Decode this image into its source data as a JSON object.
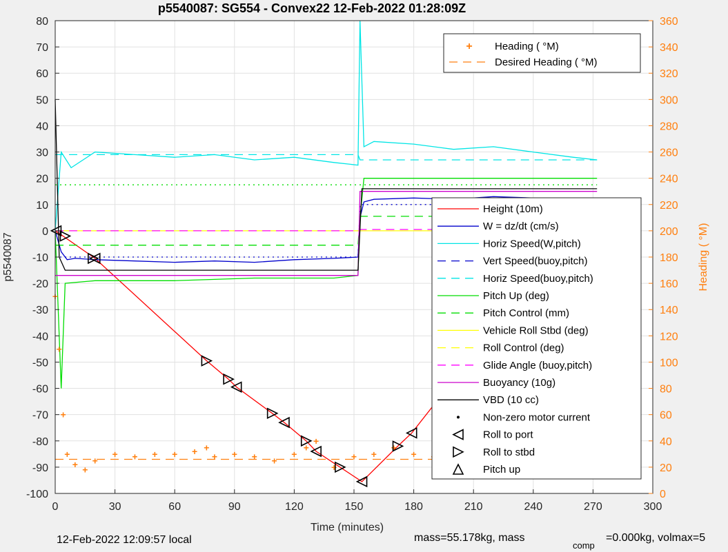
{
  "figure": {
    "title": "p5540087: SG554 - Convex22 12-Feb-2022 01:28:09Z",
    "footer_left": "12-Feb-2022 12:09:57 local",
    "footer_mid": "mass=55.178kg, mass",
    "footer_sub": "comp",
    "footer_right": "=0.000kg, volmax=5"
  },
  "chart_data": {
    "type": "line",
    "title": "p5540087: SG554 - Convex22 12-Feb-2022 01:28:09Z",
    "xlabel": "Time (minutes)",
    "ylabel": "p5540087",
    "y2label": "Heading ( °M)",
    "xlim": [
      0,
      300
    ],
    "ylim": [
      -100,
      80
    ],
    "y2lim": [
      0,
      360
    ],
    "xticks": [
      0,
      30,
      60,
      90,
      120,
      150,
      180,
      210,
      240,
      270,
      300
    ],
    "yticks": [
      -100,
      -90,
      -80,
      -70,
      -60,
      -50,
      -40,
      -30,
      -20,
      -10,
      0,
      10,
      20,
      30,
      40,
      50,
      60,
      70,
      80
    ],
    "y2ticks": [
      0,
      20,
      40,
      60,
      80,
      100,
      120,
      140,
      160,
      180,
      200,
      220,
      240,
      260,
      280,
      300,
      320,
      340,
      360
    ],
    "grid": true,
    "colors": {
      "height": "#ff0000",
      "w": "#0000cc",
      "horiz": "#00e5e5",
      "pitch": "#00dd00",
      "roll": "#ffff00",
      "glide": "#ff00ff",
      "buoyancy": "#cc00cc",
      "vbd": "#000000",
      "heading": "#ff7f0e"
    },
    "legend_heading": {
      "position": "top-right",
      "entries": [
        "Heading ( °M)",
        "Desired Heading ( °M)"
      ]
    },
    "legend_main": {
      "position": "right",
      "entries": [
        "Height (10m)",
        "W = dz/dt (cm/s)",
        "Horiz Speed(W,pitch)",
        "Vert Speed(buoy,pitch)",
        "Horiz Speed(buoy,pitch)",
        "Pitch Up (deg)",
        "Pitch Control (mm)",
        "Vehicle Roll Stbd (deg)",
        "Roll Control (deg)",
        "Glide Angle (buoy,pitch)",
        "Buoyancy (10g)",
        "VBD (10 cc)",
        "Non-zero motor current",
        "Roll to port",
        "Roll to stbd",
        "Pitch up"
      ]
    },
    "series": [
      {
        "name": "Height (10m)",
        "x": [
          0,
          2,
          20,
          76,
          87,
          91,
          109,
          115,
          126,
          131,
          143,
          154,
          172,
          179,
          193,
          200,
          213,
          219,
          230,
          241,
          248,
          262,
          272
        ],
        "values": [
          0,
          -1,
          -10.5,
          -49.5,
          -56.5,
          -59.5,
          -69.5,
          -73,
          -80,
          -84,
          -90,
          -95.5,
          -82,
          -77,
          -63.5,
          -59,
          -47.5,
          -42.5,
          -32.5,
          -23.5,
          -18,
          -8,
          0
        ]
      },
      {
        "name": "W = dz/dt (cm/s)",
        "x": [
          0,
          3,
          6,
          10,
          20,
          40,
          60,
          80,
          100,
          120,
          140,
          152,
          153,
          155,
          160,
          180,
          200,
          220,
          240,
          260,
          272
        ],
        "values": [
          0,
          -8,
          -11,
          -10.5,
          -11,
          -11.5,
          -12,
          -11.5,
          -12,
          -11,
          -10.5,
          -10,
          5,
          11,
          12,
          12.5,
          12,
          13,
          12.5,
          12,
          12
        ]
      },
      {
        "name": "Horiz Speed(W,pitch)",
        "x": [
          0,
          3,
          8,
          20,
          40,
          60,
          80,
          100,
          120,
          140,
          152,
          153,
          155,
          160,
          180,
          200,
          220,
          240,
          260,
          272
        ],
        "values": [
          0,
          30,
          24,
          30,
          29,
          28,
          29,
          27,
          28,
          26,
          25,
          80,
          32,
          34,
          33,
          31,
          32,
          30,
          28,
          27
        ]
      },
      {
        "name": "Vert Speed(buoy,pitch)",
        "x": [
          0,
          152,
          153,
          272
        ],
        "values": [
          -10,
          -10,
          10,
          10
        ]
      },
      {
        "name": "Horiz Speed(buoy,pitch)",
        "x": [
          0,
          152,
          153,
          272
        ],
        "values": [
          29,
          29,
          27,
          27
        ]
      },
      {
        "name": "Pitch Up (deg)",
        "x": [
          0,
          3,
          5,
          20,
          60,
          100,
          140,
          152,
          153,
          155,
          200,
          240,
          272
        ],
        "values": [
          0,
          -60,
          -20,
          -19,
          -19,
          -18,
          -18,
          -17,
          5,
          20,
          20,
          20,
          20
        ]
      },
      {
        "name": "Pitch Control (mm)",
        "x": [
          0,
          152,
          153,
          272
        ],
        "values": [
          -5.5,
          -5.5,
          5.5,
          5.5
        ]
      },
      {
        "name": "Vehicle Roll Stbd (deg)",
        "x": [
          0,
          20,
          60,
          76,
          100,
          109,
          115,
          140,
          152,
          172,
          179,
          200,
          220,
          260,
          272
        ],
        "values": [
          0,
          0,
          0,
          0,
          0,
          0,
          0,
          0,
          0,
          0,
          0,
          0,
          0,
          0,
          0
        ]
      },
      {
        "name": "Roll Control (deg)",
        "x": [
          0,
          152,
          153,
          272
        ],
        "values": [
          17.5,
          17.5,
          17.5,
          17.5
        ]
      },
      {
        "name": "Glide Angle (buoy,pitch)",
        "x": [
          0,
          152,
          153,
          272
        ],
        "values": [
          0,
          0,
          0.5,
          0.5
        ]
      },
      {
        "name": "Buoyancy (10g)",
        "x": [
          0,
          152,
          153,
          272
        ],
        "values": [
          -17,
          -17,
          15,
          15
        ]
      },
      {
        "name": "VBD (10 cc)",
        "x": [
          0,
          2,
          5,
          152,
          154,
          272
        ],
        "values": [
          50,
          -10,
          -15,
          -15,
          16,
          16
        ]
      },
      {
        "name": "Heading ( °M)",
        "axis": "right",
        "x": [
          0,
          2,
          4,
          6,
          10,
          15,
          20,
          30,
          40,
          50,
          60,
          70,
          76,
          80,
          90,
          100,
          110,
          120,
          126,
          131,
          140,
          150,
          160,
          170,
          180,
          190,
          200,
          210,
          220,
          230,
          240,
          250,
          260,
          272
        ],
        "values": [
          150,
          110,
          60,
          30,
          22,
          18,
          25,
          30,
          28,
          30,
          30,
          32,
          35,
          28,
          30,
          28,
          25,
          30,
          35,
          40,
          20,
          28,
          30,
          35,
          30,
          28,
          32,
          30,
          35,
          30,
          32,
          28,
          30,
          30
        ]
      },
      {
        "name": "Desired Heading ( °M)",
        "axis": "right",
        "x": [
          0,
          272
        ],
        "values": [
          26,
          26
        ]
      }
    ],
    "markers": {
      "roll_to_port": [
        [
          0.5,
          0
        ],
        [
          20,
          -10.5
        ],
        [
          91,
          -59.5
        ],
        [
          115,
          -73
        ],
        [
          131,
          -84
        ],
        [
          154,
          -95.5
        ],
        [
          179,
          -77
        ],
        [
          200,
          -59
        ],
        [
          219,
          -42.5
        ],
        [
          241,
          -23.5
        ],
        [
          262,
          -8
        ]
      ],
      "roll_to_stbd": [
        [
          5,
          -2
        ],
        [
          19,
          -10.5
        ],
        [
          76,
          -49.5
        ],
        [
          87,
          -56.5
        ],
        [
          109,
          -69.5
        ],
        [
          126,
          -80
        ],
        [
          143,
          -90
        ],
        [
          172,
          -82
        ],
        [
          193,
          -63.5
        ],
        [
          213,
          -47.5
        ],
        [
          230,
          -32.5
        ],
        [
          248,
          -18
        ],
        [
          263,
          -8
        ]
      ]
    }
  }
}
